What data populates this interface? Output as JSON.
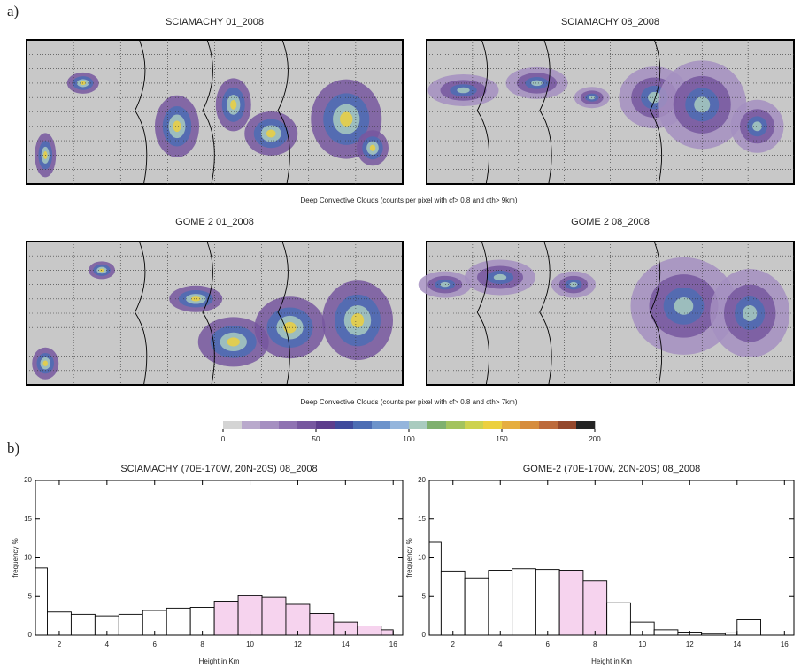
{
  "panel_labels": [
    "a)",
    "b)"
  ],
  "maps": [
    {
      "title": "SCIAMACHY  01_2008"
    },
    {
      "title": "SCIAMACHY  08_2008"
    },
    {
      "title": "GOME 2  01_2008"
    },
    {
      "title": "GOME 2  08_2008"
    }
  ],
  "map_captions": [
    "Deep Convective Clouds (counts per pixel with cf> 0.8 and cth> 9km)",
    "Deep Convective Clouds (counts per pixel with cf> 0.8 and cth> 7km)"
  ],
  "colorbar": {
    "lim": [
      0,
      200
    ],
    "ticks": [
      0,
      50,
      100,
      150,
      200
    ],
    "colors": [
      "#d4d4d4",
      "#b9a9cc",
      "#a58fc1",
      "#8f72b2",
      "#77579f",
      "#5d3d8c",
      "#3f4a9c",
      "#4c6db4",
      "#6c93cb",
      "#94b5dc",
      "#a9cbbf",
      "#7fb06e",
      "#a3c35e",
      "#cdd24e",
      "#ecd03f",
      "#e6ae3f",
      "#d68c3d",
      "#bd6a3b",
      "#94472c",
      "#242424"
    ]
  },
  "chart_data": [
    {
      "type": "histogram",
      "title": "SCIAMACHY (70E-170W, 20N-20S) 08_2008",
      "xlabel": "Height in Km",
      "ylabel": "frequency %",
      "bins": [
        1,
        1.5,
        2.5,
        3.5,
        4.5,
        5.5,
        6.5,
        7.5,
        8.5,
        9.5,
        10.5,
        11.5,
        12.5,
        13.5,
        14.5,
        15.5,
        16
      ],
      "values": [
        8.7,
        3.0,
        2.7,
        2.5,
        2.7,
        3.2,
        3.5,
        3.6,
        4.4,
        5.1,
        4.9,
        4.0,
        2.8,
        1.7,
        1.2,
        0.7
      ],
      "colors": [
        "#ffffff",
        "#ffffff",
        "#ffffff",
        "#ffffff",
        "#ffffff",
        "#ffffff",
        "#ffffff",
        "#ffffff",
        "#f6d3ee",
        "#f6d3ee",
        "#f6d3ee",
        "#f6d3ee",
        "#f6d3ee",
        "#f6d3ee",
        "#f6d3ee",
        "#f6d3ee"
      ],
      "xlim": [
        1,
        16.4
      ],
      "xticks": [
        2,
        4,
        6,
        8,
        10,
        12,
        14,
        16
      ],
      "ylim": [
        0,
        20
      ],
      "yticks": [
        0,
        5,
        10,
        15,
        20
      ]
    },
    {
      "type": "histogram",
      "title": "GOME-2 (70E-170W, 20N-20S) 08_2008",
      "xlabel": "Height in Km",
      "ylabel": "frequency %",
      "bins": [
        1,
        1.5,
        2.5,
        3.5,
        4.5,
        5.5,
        6.5,
        7.5,
        8.5,
        9.5,
        10.5,
        11.5,
        12.5,
        13.5,
        14,
        15
      ],
      "values": [
        12.0,
        8.3,
        7.4,
        8.4,
        8.6,
        8.5,
        8.4,
        7.0,
        4.2,
        1.7,
        0.7,
        0.4,
        0.2,
        0.3,
        2.0
      ],
      "colors": [
        "#ffffff",
        "#ffffff",
        "#ffffff",
        "#ffffff",
        "#ffffff",
        "#ffffff",
        "#f6d3ee",
        "#f6d3ee",
        "#ffffff",
        "#ffffff",
        "#ffffff",
        "#ffffff",
        "#ffffff",
        "#ffffff",
        "#ffffff"
      ],
      "xlim": [
        1,
        16.4
      ],
      "xticks": [
        2,
        4,
        6,
        8,
        10,
        12,
        14,
        16
      ],
      "ylim": [
        0,
        20
      ],
      "yticks": [
        0,
        5,
        10,
        15,
        20
      ]
    }
  ]
}
